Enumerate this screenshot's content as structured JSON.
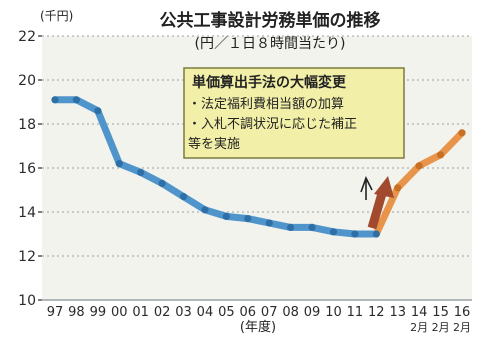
{
  "colors": {
    "page": "#ffffff",
    "plot_bg": "#f1f3ec",
    "grid": "#9aa1a7",
    "axis_text": "#2b2b2b",
    "blue_line": "#4f95cc",
    "blue_dot": "#2f6fa8",
    "orange_line": "#e8944a",
    "orange_dot": "#c96f23",
    "annotation_bg": "#f2f0a8",
    "annotation_border": "#7b7a3e",
    "arrow_fill": "#a24a2e",
    "arrow_outline": "#222222"
  },
  "annotation": {
    "heading": "単価算出手法の大幅変更",
    "lines": [
      "・法定福利費相当額の加算",
      "・入札不調状況に応じた補正",
      "等を実施"
    ]
  },
  "chart_data": {
    "type": "line",
    "title": "公共工事設計労務単価の推移",
    "subtitle": "(円／１日８時間当たり)",
    "y_unit": "(千円)",
    "xlabel": "(年度)",
    "ylim": [
      10,
      22
    ],
    "yticks": [
      10,
      12,
      14,
      16,
      18,
      20,
      22
    ],
    "grid": "horizontal",
    "categories": [
      "97",
      "98",
      "99",
      "00",
      "01",
      "02",
      "03",
      "04",
      "05",
      "06",
      "07",
      "08",
      "09",
      "10",
      "11",
      "12",
      "13",
      "14",
      "15",
      "16"
    ],
    "sub_labels": [
      "",
      "",
      "",
      "",
      "",
      "",
      "",
      "",
      "",
      "",
      "",
      "",
      "",
      "",
      "",
      "",
      "",
      "2月",
      "2月",
      "2月"
    ],
    "series": [
      {
        "color_key": "before_change",
        "values": [
          19.1,
          19.1,
          18.6,
          16.2,
          15.8,
          15.3,
          14.7,
          14.1,
          13.8,
          13.7,
          13.5,
          13.3,
          13.3,
          13.1,
          13.0,
          13.0,
          null,
          null,
          null,
          null
        ]
      },
      {
        "color_key": "after_change",
        "values": [
          null,
          null,
          null,
          null,
          null,
          null,
          null,
          null,
          null,
          null,
          null,
          null,
          null,
          null,
          null,
          13.0,
          15.1,
          16.1,
          16.6,
          17.6
        ]
      }
    ]
  }
}
